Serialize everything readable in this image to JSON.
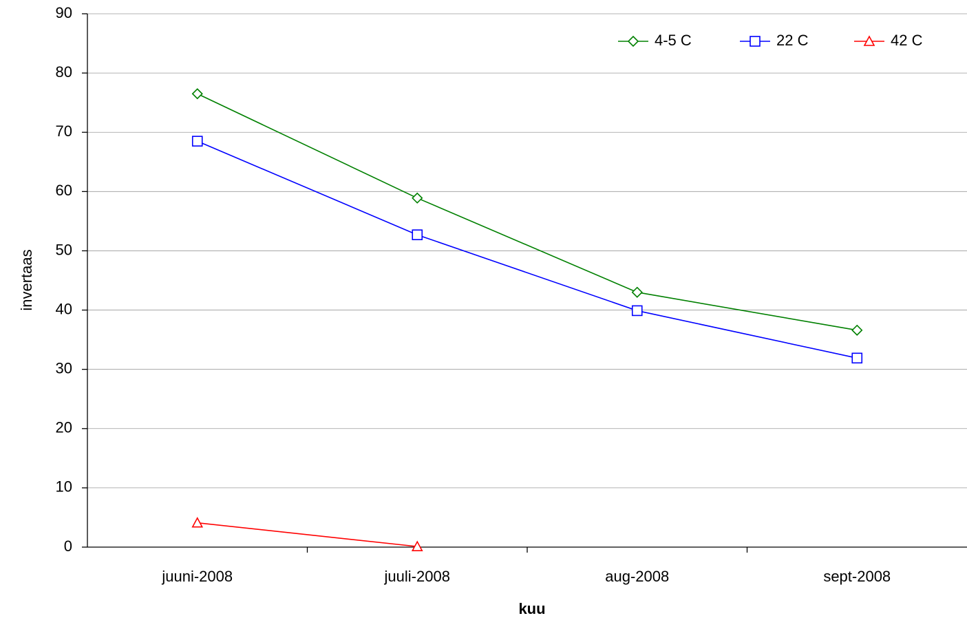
{
  "chart_data": {
    "type": "line",
    "title": "",
    "xlabel": "kuu",
    "ylabel": "invertaas",
    "categories": [
      "juuni-2008",
      "juuli-2008",
      "aug-2008",
      "sept-2008"
    ],
    "ylim": [
      0,
      90
    ],
    "yticks": [
      0,
      10,
      20,
      30,
      40,
      50,
      60,
      70,
      80,
      90
    ],
    "grid": true,
    "legend_position": "top-right",
    "series": [
      {
        "name": "4-5 C",
        "color": "#008000",
        "marker": "diamond",
        "values": [
          76.5,
          58.9,
          43,
          36.6
        ]
      },
      {
        "name": "22 C",
        "color": "#0000ff",
        "marker": "square",
        "values": [
          68.5,
          52.7,
          39.9,
          31.9
        ]
      },
      {
        "name": "42 C",
        "color": "#ff0000",
        "marker": "triangle",
        "values": [
          4.1,
          0.1,
          null,
          null
        ]
      }
    ]
  }
}
